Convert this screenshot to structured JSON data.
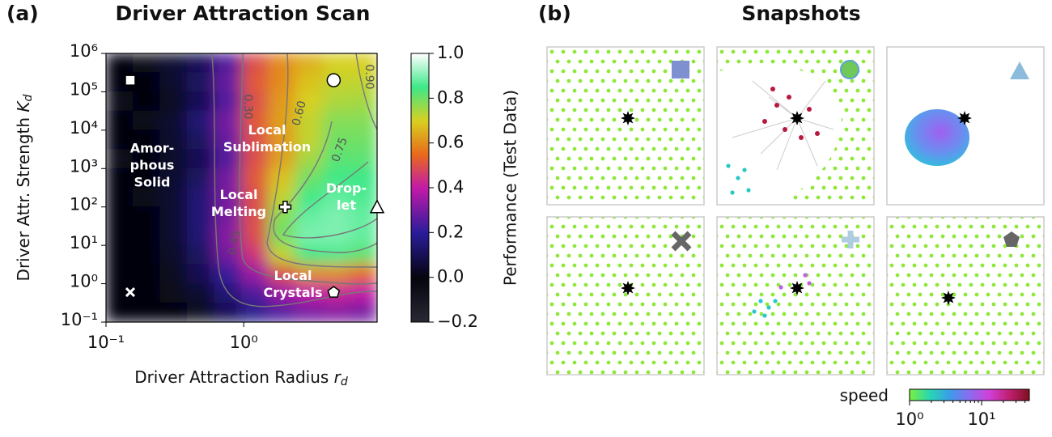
{
  "panel_a": {
    "type": "heatmap",
    "label": "(a)",
    "title": "Driver Attraction Scan",
    "xlabel": {
      "text": "Driver Attraction Radius",
      "symbol": "r",
      "subscript": "d"
    },
    "ylabel": {
      "text": "Driver Attr. Strength",
      "symbol": "K",
      "subscript": "d"
    },
    "log_x": true,
    "log_y": true,
    "xlim": [
      0.1,
      9.3
    ],
    "ylim": [
      0.1,
      1000000
    ],
    "xticks": [
      {
        "value": 0.1,
        "label": "10⁻¹"
      },
      {
        "value": 1,
        "label": "10⁰"
      }
    ],
    "yticks": [
      {
        "value": 0.1,
        "label": "10⁻¹"
      },
      {
        "value": 1,
        "label": "10⁰"
      },
      {
        "value": 10,
        "label": "10¹"
      },
      {
        "value": 100,
        "label": "10²"
      },
      {
        "value": 1000,
        "label": "10³"
      },
      {
        "value": 10000,
        "label": "10⁴"
      },
      {
        "value": 100000,
        "label": "10⁵"
      },
      {
        "value": 1000000,
        "label": "10⁶"
      }
    ],
    "heatmap": {
      "z": [
        [
          0,
          0.02,
          0.05,
          0.1,
          0.25,
          0.5,
          0.6,
          0.65,
          0.7,
          0.7
        ],
        [
          0,
          0,
          0.05,
          0.12,
          0.28,
          0.52,
          0.6,
          0.68,
          0.72,
          0.72
        ],
        [
          0.02,
          0,
          0.03,
          0.1,
          0.25,
          0.5,
          0.62,
          0.7,
          0.74,
          0.75
        ],
        [
          0,
          0.02,
          0.05,
          0.15,
          0.3,
          0.52,
          0.63,
          0.72,
          0.78,
          0.78
        ],
        [
          0,
          0,
          0.05,
          0.12,
          0.28,
          0.5,
          0.62,
          0.72,
          0.8,
          0.8
        ],
        [
          0.02,
          0,
          0.04,
          0.1,
          0.25,
          0.5,
          0.63,
          0.75,
          0.82,
          0.82
        ],
        [
          0,
          0,
          0.05,
          0.12,
          0.3,
          0.52,
          0.68,
          0.8,
          0.85,
          0.85
        ],
        [
          0,
          0.02,
          0.05,
          0.15,
          0.3,
          0.5,
          0.72,
          0.85,
          0.88,
          0.86
        ],
        [
          0,
          0,
          0.05,
          0.15,
          0.3,
          0.5,
          0.78,
          0.88,
          0.9,
          0.88
        ],
        [
          0,
          0,
          0.05,
          0.15,
          0.32,
          0.5,
          0.8,
          0.9,
          0.9,
          0.88
        ],
        [
          0,
          0,
          0.04,
          0.12,
          0.3,
          0.45,
          0.72,
          0.85,
          0.86,
          0.82
        ],
        [
          0,
          0,
          0.03,
          0.1,
          0.22,
          0.35,
          0.5,
          0.6,
          0.6,
          0.55
        ],
        [
          0,
          0,
          0.02,
          0.05,
          0.15,
          0.25,
          0.35,
          0.4,
          0.42,
          0.4
        ],
        [
          0,
          0,
          0,
          0.03,
          0.1,
          0.18,
          0.25,
          0.3,
          0.32,
          0.3
        ]
      ]
    },
    "contour_labels": [
      "0.30",
      "0.45",
      "0.60",
      "0.75",
      "0.90"
    ],
    "regions": [
      [
        "Amor-",
        "phous",
        "Solid"
      ],
      [
        "Local",
        "Sublimation"
      ],
      [
        "Local",
        "Melting"
      ],
      [
        "Drop-",
        "let"
      ],
      [
        "Local",
        "Crystals"
      ]
    ],
    "markers": [
      {
        "symbol": "square",
        "x": 0.15,
        "y": 200000
      },
      {
        "symbol": "circle",
        "x": 4.5,
        "y": 200000
      },
      {
        "symbol": "x",
        "x": 0.15,
        "y": 0.6
      },
      {
        "symbol": "triangle",
        "x": 9.3,
        "y": 100
      },
      {
        "symbol": "plus",
        "x": 2,
        "y": 100
      },
      {
        "symbol": "pentagon",
        "x": 4.5,
        "y": 0.6
      }
    ],
    "colorbar": {
      "label": "Performance (Test Data)",
      "lim": [
        -0.2,
        1.0
      ],
      "ticks": [
        {
          "value": 1,
          "label": "1.0"
        },
        0.8,
        0.6,
        0.4,
        0.2,
        {
          "value": 0,
          "label": "0.0"
        },
        {
          "value": -0.2,
          "label": "−0.2"
        }
      ],
      "colormap": [
        [
          -0.2,
          "#2a2a36"
        ],
        [
          0,
          "#05050f"
        ],
        [
          0.2,
          "#2a1c9a"
        ],
        [
          0.4,
          "#c21aa8"
        ],
        [
          0.55,
          "#e86a1c"
        ],
        [
          0.7,
          "#d8d020"
        ],
        [
          0.85,
          "#3ee888"
        ],
        [
          1.0,
          "#ffffff"
        ]
      ]
    }
  },
  "panel_b": {
    "label": "(b)",
    "title": "Snapshots",
    "colorbar": {
      "label": "speed",
      "log": true,
      "lim": [
        1,
        46
      ],
      "ticks": [
        {
          "value": 1,
          "label": "10⁰"
        },
        {
          "value": 10,
          "label": "10¹"
        }
      ],
      "minor_ticks": [
        2,
        3,
        4,
        5,
        6,
        7,
        8,
        9,
        20,
        30,
        40
      ],
      "colormap": [
        "#7cf03c",
        "#28d8b0",
        "#3a9ee8",
        "#8a6cf0",
        "#d040d8",
        "#c02070",
        "#801020"
      ]
    }
  }
}
